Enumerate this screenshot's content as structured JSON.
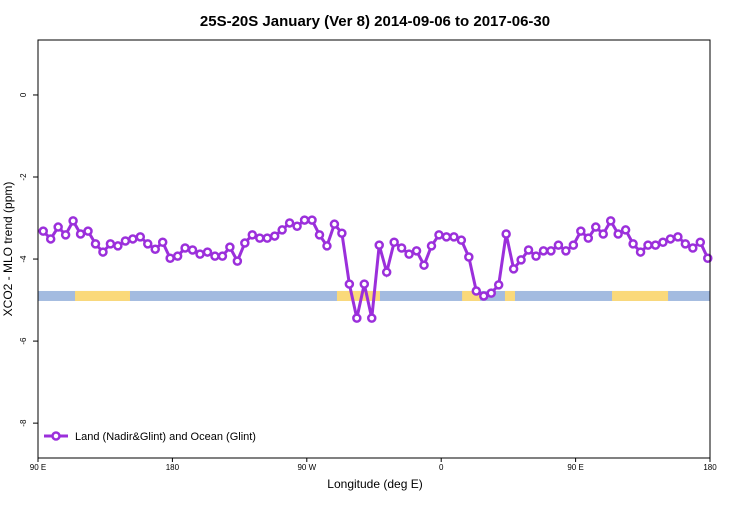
{
  "chart_data": {
    "type": "line",
    "title": "25S-20S January (Ver 8)   2014-09-06 to 2017-06-30",
    "x_label": "Longitude (deg E)",
    "y_label": "XCO2 - MLO trend (ppm)",
    "xlim": [
      90,
      540
    ],
    "ylim": [
      -8.85,
      1.34
    ],
    "xticks": [
      {
        "value": 90,
        "label": "90 E"
      },
      {
        "value": 180,
        "label": "180"
      },
      {
        "value": 270,
        "label": "90 W"
      },
      {
        "value": 360,
        "label": "0"
      },
      {
        "value": 450,
        "label": "90 E"
      },
      {
        "value": 540,
        "label": "180"
      }
    ],
    "yticks": [
      0,
      -2,
      -4,
      -6,
      -8
    ],
    "legend": "bottom-left",
    "x": [
      93.5,
      98.5,
      103.5,
      108.5,
      113.5,
      118.5,
      123.5,
      128.5,
      133.5,
      138.5,
      143.5,
      148.5,
      153.5,
      158.5,
      163.5,
      168.5,
      173.5,
      178.5,
      183.5,
      188.5,
      193.5,
      198.5,
      203.5,
      208.5,
      213.5,
      218.5,
      223.5,
      228.5,
      233.5,
      238.5,
      243.5,
      248.5,
      253.5,
      258.5,
      263.5,
      268.5,
      273.5,
      278.5,
      283.5,
      288.5,
      293.5,
      298.5,
      303.5,
      308.5,
      313.5,
      318.5,
      323.5,
      328.5,
      333.5,
      338.5,
      343.5,
      348.5,
      353.5,
      358.5,
      363.5,
      368.5,
      373.5,
      378.5,
      383.5,
      388.5,
      393.5,
      398.5,
      403.5,
      408.5,
      413.5,
      418.5,
      423.5,
      428.5,
      433.5,
      438.5,
      443.5,
      448.5,
      453.5,
      458.5,
      463.5,
      468.5,
      473.5,
      478.5,
      483.5,
      488.5,
      493.5,
      498.5,
      503.5,
      508.5,
      513.5,
      518.5,
      523.5,
      528.5,
      533.5,
      538.5
    ],
    "series": [
      {
        "name": "Land (Nadir&Glint) and Ocean (Glint)",
        "color": "#9b2fdb",
        "values": [
          -3.32,
          -3.51,
          -3.22,
          -3.41,
          -3.07,
          -3.39,
          -3.32,
          -3.63,
          -3.83,
          -3.63,
          -3.68,
          -3.56,
          -3.51,
          -3.46,
          -3.63,
          -3.76,
          -3.59,
          -3.98,
          -3.93,
          -3.73,
          -3.78,
          -3.88,
          -3.83,
          -3.93,
          -3.93,
          -3.71,
          -4.05,
          -3.61,
          -3.41,
          -3.49,
          -3.49,
          -3.44,
          -3.29,
          -3.12,
          -3.2,
          -3.05,
          -3.05,
          -3.41,
          -3.68,
          -3.15,
          -3.37,
          -4.61,
          -5.44,
          -4.61,
          -5.44,
          -3.66,
          -4.32,
          -3.59,
          -3.73,
          -3.88,
          -3.8,
          -4.15,
          -3.68,
          -3.41,
          -3.46,
          -3.46,
          -3.54,
          -3.95,
          -4.78,
          -4.9,
          -4.83,
          -4.63,
          -3.39,
          -4.24,
          -4.02,
          -3.78,
          -3.93,
          -3.8,
          -3.8,
          -3.66,
          -3.8,
          -3.66,
          -3.32,
          -3.49,
          -3.22,
          -3.39,
          -3.07,
          -3.39,
          -3.29,
          -3.63,
          -3.83,
          -3.66,
          -3.66,
          -3.59,
          -3.51,
          -3.46,
          -3.63,
          -3.73,
          -3.59,
          -3.98
        ]
      }
    ],
    "surface_band": {
      "y": -4.9,
      "ocean_color": "#a3bbe0",
      "land_color": "#fad97a",
      "land": [
        [
          114.8,
          151.6
        ],
        [
          290.2,
          319
        ],
        [
          374,
          386
        ],
        [
          402.7,
          409.4
        ],
        [
          474.4,
          511.9
        ]
      ]
    }
  }
}
